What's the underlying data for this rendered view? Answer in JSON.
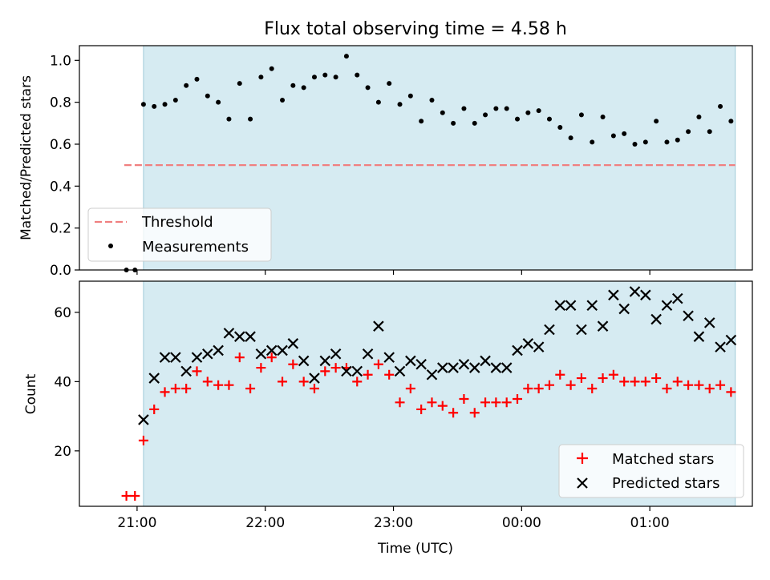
{
  "chart_data": [
    {
      "type": "scatter",
      "title": "Flux total observing time = 4.58 h",
      "xlabel": "",
      "ylabel": "Matched/Predicted stars",
      "ylim": [
        0,
        1.07
      ],
      "yticks": [
        0.0,
        0.2,
        0.4,
        0.6,
        0.8,
        1.0
      ],
      "ytick_labels": [
        "0.0",
        "0.2",
        "0.4",
        "0.6",
        "0.8",
        "1.0"
      ],
      "observing_window": {
        "start": "21:03",
        "end": "01:40"
      },
      "threshold": {
        "name": "Threshold",
        "value": 0.5,
        "x_start": "20:54",
        "x_end": "01:40",
        "color": "#f08080",
        "style": "dashed"
      },
      "series": [
        {
          "name": "Measurements",
          "color": "#000000",
          "marker": "dot",
          "x": [
            "20:55",
            "20:59",
            "21:03",
            "21:08",
            "21:13",
            "21:18",
            "21:23",
            "21:28",
            "21:33",
            "21:38",
            "21:43",
            "21:48",
            "21:53",
            "21:58",
            "22:03",
            "22:08",
            "22:13",
            "22:18",
            "22:23",
            "22:28",
            "22:33",
            "22:38",
            "22:43",
            "22:48",
            "22:53",
            "22:58",
            "23:03",
            "23:08",
            "23:13",
            "23:18",
            "23:23",
            "23:28",
            "23:33",
            "23:38",
            "23:43",
            "23:48",
            "23:53",
            "23:58",
            "00:03",
            "00:08",
            "00:13",
            "00:18",
            "00:23",
            "00:28",
            "00:33",
            "00:38",
            "00:43",
            "00:48",
            "00:53",
            "00:58",
            "01:03",
            "01:08",
            "01:13",
            "01:18",
            "01:23",
            "01:28",
            "01:33",
            "01:38"
          ],
          "y": [
            0.0,
            0.0,
            0.79,
            0.78,
            0.79,
            0.81,
            0.88,
            0.91,
            0.83,
            0.8,
            0.72,
            0.89,
            0.72,
            0.92,
            0.96,
            0.81,
            0.88,
            0.87,
            0.92,
            0.93,
            0.92,
            1.02,
            0.93,
            0.87,
            0.8,
            0.89,
            0.79,
            0.83,
            0.71,
            0.81,
            0.75,
            0.7,
            0.77,
            0.7,
            0.74,
            0.77,
            0.77,
            0.72,
            0.75,
            0.76,
            0.72,
            0.68,
            0.63,
            0.74,
            0.61,
            0.73,
            0.64,
            0.65,
            0.6,
            0.61,
            0.71,
            0.61,
            0.62,
            0.66,
            0.73,
            0.66,
            0.78,
            0.71
          ]
        }
      ],
      "legend": {
        "placement": "lower-left",
        "entries": [
          "Threshold",
          "Measurements"
        ]
      }
    },
    {
      "type": "scatter",
      "title": "",
      "xlabel": "Time (UTC)",
      "ylabel": "Count",
      "ylim": [
        4,
        69
      ],
      "yticks": [
        20,
        40,
        60
      ],
      "ytick_labels": [
        "20",
        "40",
        "60"
      ],
      "xlim": [
        "20:33",
        "01:48"
      ],
      "xticks": [
        "21:00",
        "22:00",
        "23:00",
        "00:00",
        "01:00"
      ],
      "xtick_labels": [
        "21:00",
        "22:00",
        "23:00",
        "00:00",
        "01:00"
      ],
      "observing_window": {
        "start": "21:03",
        "end": "01:40"
      },
      "series": [
        {
          "name": "Matched stars",
          "color": "#ff0000",
          "marker": "plus",
          "x": [
            "20:55",
            "20:59",
            "21:03",
            "21:08",
            "21:13",
            "21:18",
            "21:23",
            "21:28",
            "21:33",
            "21:38",
            "21:43",
            "21:48",
            "21:53",
            "21:58",
            "22:03",
            "22:08",
            "22:13",
            "22:18",
            "22:23",
            "22:28",
            "22:33",
            "22:38",
            "22:43",
            "22:48",
            "22:53",
            "22:58",
            "23:03",
            "23:08",
            "23:13",
            "23:18",
            "23:23",
            "23:28",
            "23:33",
            "23:38",
            "23:43",
            "23:48",
            "23:53",
            "23:58",
            "00:03",
            "00:08",
            "00:13",
            "00:18",
            "00:23",
            "00:28",
            "00:33",
            "00:38",
            "00:43",
            "00:48",
            "00:53",
            "00:58",
            "01:03",
            "01:08",
            "01:13",
            "01:18",
            "01:23",
            "01:28",
            "01:33",
            "01:38"
          ],
          "y": [
            7,
            7,
            23,
            32,
            37,
            38,
            38,
            43,
            40,
            39,
            39,
            47,
            38,
            44,
            47,
            40,
            45,
            40,
            38,
            43,
            44,
            44,
            40,
            42,
            45,
            42,
            34,
            38,
            32,
            34,
            33,
            31,
            35,
            31,
            34,
            34,
            34,
            35,
            38,
            38,
            39,
            42,
            39,
            41,
            38,
            41,
            42,
            40,
            40,
            40,
            41,
            38,
            40,
            39,
            39,
            38,
            39,
            37
          ]
        },
        {
          "name": "Predicted stars",
          "color": "#000000",
          "marker": "x",
          "x": [
            "21:03",
            "21:08",
            "21:13",
            "21:18",
            "21:23",
            "21:28",
            "21:33",
            "21:38",
            "21:43",
            "21:48",
            "21:53",
            "21:58",
            "22:03",
            "22:08",
            "22:13",
            "22:18",
            "22:23",
            "22:28",
            "22:33",
            "22:38",
            "22:43",
            "22:48",
            "22:53",
            "22:58",
            "23:03",
            "23:08",
            "23:13",
            "23:18",
            "23:23",
            "23:28",
            "23:33",
            "23:38",
            "23:43",
            "23:48",
            "23:53",
            "23:58",
            "00:03",
            "00:08",
            "00:13",
            "00:18",
            "00:23",
            "00:28",
            "00:33",
            "00:38",
            "00:43",
            "00:48",
            "00:53",
            "00:58",
            "01:03",
            "01:08",
            "01:13",
            "01:18",
            "01:23",
            "01:28",
            "01:33",
            "01:38"
          ],
          "y": [
            29,
            41,
            47,
            47,
            43,
            47,
            48,
            49,
            54,
            53,
            53,
            48,
            49,
            49,
            51,
            46,
            41,
            46,
            48,
            43,
            43,
            48,
            56,
            47,
            43,
            46,
            45,
            42,
            44,
            44,
            45,
            44,
            46,
            44,
            44,
            49,
            51,
            50,
            55,
            62,
            62,
            55,
            62,
            56,
            65,
            61,
            66,
            65,
            58,
            62,
            64,
            59,
            53,
            57,
            50,
            52
          ]
        }
      ],
      "legend": {
        "placement": "lower-right",
        "entries": [
          "Matched stars",
          "Predicted stars"
        ]
      }
    }
  ]
}
